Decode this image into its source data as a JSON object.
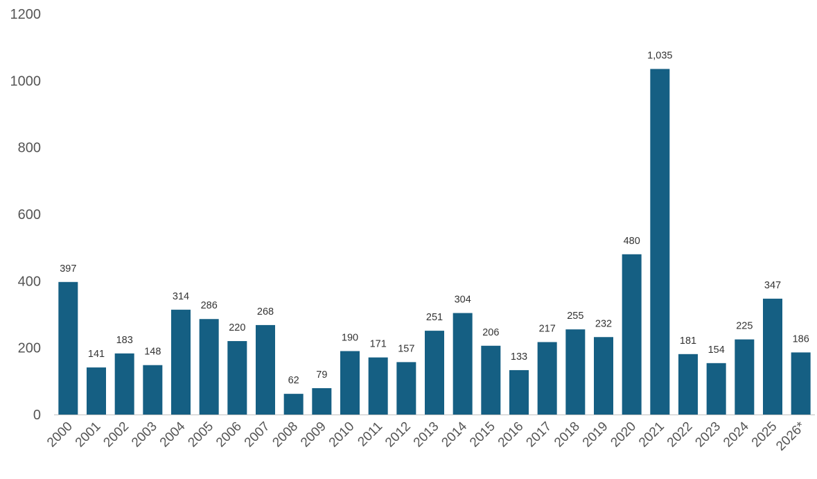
{
  "chart_data": {
    "type": "bar",
    "categories": [
      "2000",
      "2001",
      "2002",
      "2003",
      "2004",
      "2005",
      "2006",
      "2007",
      "2008",
      "2009",
      "2010",
      "2011",
      "2012",
      "2013",
      "2014",
      "2015",
      "2016",
      "2017",
      "2018",
      "2019",
      "2020",
      "2021",
      "2022",
      "2023",
      "2024",
      "2025",
      "2026*"
    ],
    "values": [
      397,
      141,
      183,
      148,
      314,
      286,
      220,
      268,
      62,
      79,
      190,
      171,
      157,
      251,
      304,
      206,
      133,
      217,
      255,
      232,
      480,
      1035,
      181,
      154,
      225,
      347,
      186
    ],
    "data_labels": [
      "397",
      "141",
      "183",
      "148",
      "314",
      "286",
      "220",
      "268",
      "62",
      "79",
      "190",
      "171",
      "157",
      "251",
      "304",
      "206",
      "133",
      "217",
      "255",
      "232",
      "480",
      "1,035",
      "181",
      "154",
      "225",
      "347",
      "186"
    ],
    "title": "",
    "xlabel": "",
    "ylabel": "",
    "ylim": [
      0,
      1200
    ],
    "yticks": [
      0,
      200,
      400,
      600,
      800,
      1000,
      1200
    ],
    "grid": false,
    "legend": "none",
    "bar_color": "#155f83"
  }
}
